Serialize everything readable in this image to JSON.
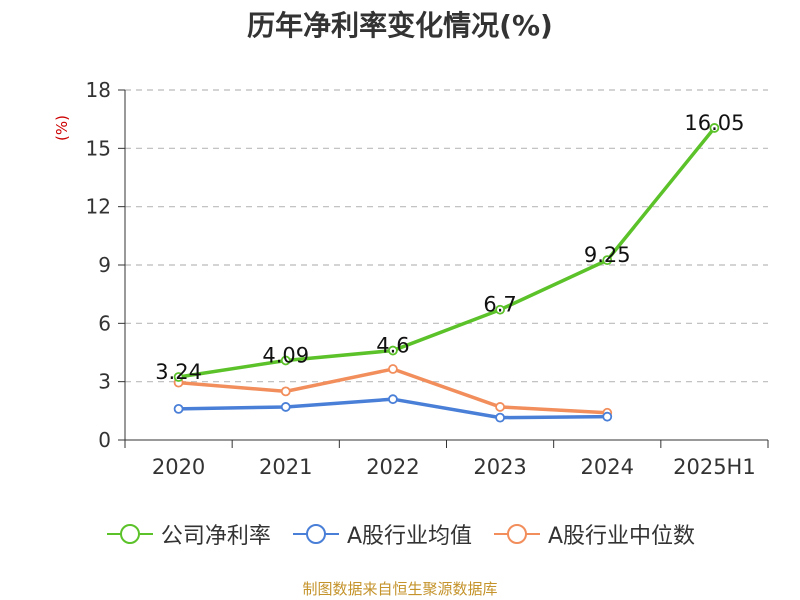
{
  "chart_data": {
    "type": "line",
    "title": "历年净利率变化情况(%)",
    "ylabel": "(%)",
    "xlabel": "",
    "categories": [
      "2020",
      "2021",
      "2022",
      "2023",
      "2024",
      "2025H1"
    ],
    "ylim": [
      0,
      18
    ],
    "yticks": [
      "0",
      "3",
      "6",
      "9",
      "12",
      "15",
      "18"
    ],
    "grid": true,
    "legend_position": "bottom",
    "series": [
      {
        "name": "公司净利率",
        "color": "#5cc22a",
        "values": [
          3.24,
          4.09,
          4.6,
          6.7,
          9.25,
          16.05
        ],
        "data_labels": [
          "3.24",
          "4.09",
          "4.6",
          "6.7",
          "9.25",
          "16.05"
        ]
      },
      {
        "name": "A股行业均值",
        "color": "#4a7fd8",
        "values": [
          1.6,
          1.7,
          2.1,
          1.15,
          1.2,
          null
        ]
      },
      {
        "name": "A股行业中位数",
        "color": "#f28e5c",
        "values": [
          2.95,
          2.5,
          3.65,
          1.7,
          1.4,
          null
        ]
      }
    ]
  },
  "source": "制图数据来自恒生聚源数据库"
}
